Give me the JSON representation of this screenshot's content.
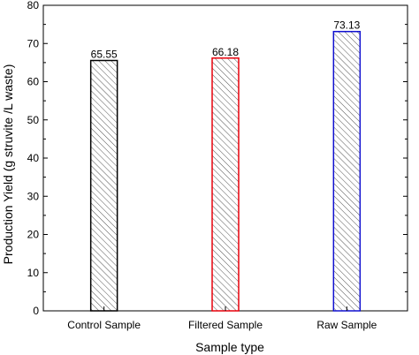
{
  "chart_data": {
    "type": "bar",
    "categories": [
      "Control Sample",
      "Filtered Sample",
      "Raw Sample"
    ],
    "values": [
      65.55,
      66.18,
      73.13
    ],
    "data_labels": [
      "65.55",
      "66.18",
      "73.13"
    ],
    "bar_colors": [
      "#000000",
      "#e8000b",
      "#1010d0"
    ],
    "bar_fill": "diagonal-hatch",
    "title": "",
    "xlabel": "Sample type",
    "ylabel": "Production Yield (g struvite /L waste)",
    "ylim": [
      0,
      80
    ],
    "yticks": [
      "0",
      "10",
      "20",
      "30",
      "40",
      "50",
      "60",
      "70",
      "80"
    ],
    "grid": false,
    "legend": "none"
  }
}
